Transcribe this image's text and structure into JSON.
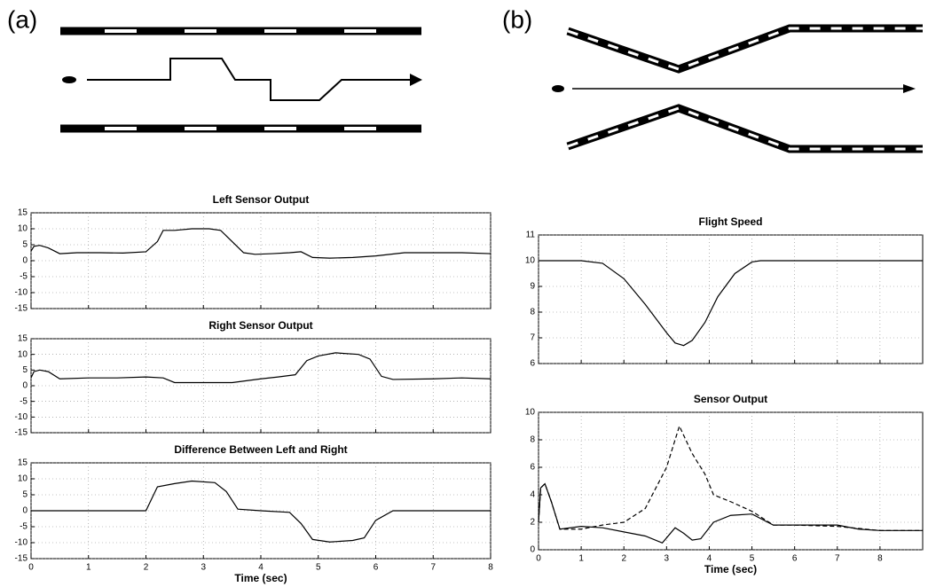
{
  "panels": [
    "(a)",
    "(b)"
  ],
  "chart_data": [
    {
      "type": "line",
      "title": "Left Sensor Output",
      "xlim": [
        0,
        8
      ],
      "ylim": [
        -15,
        15
      ],
      "xticks": [
        0,
        1,
        2,
        3,
        4,
        5,
        6,
        7,
        8
      ],
      "xtick_labels": false,
      "yticks": [
        -15,
        -10,
        -5,
        0,
        5,
        10,
        15
      ],
      "grid": true,
      "series": [
        {
          "color": "#000000",
          "dashed": false,
          "x": [
            0,
            0.05,
            0.15,
            0.3,
            0.5,
            0.8,
            1.2,
            1.6,
            2.0,
            2.2,
            2.3,
            2.5,
            2.8,
            3.1,
            3.3,
            3.5,
            3.7,
            3.9,
            4.2,
            4.5,
            4.7,
            4.9,
            5.2,
            5.6,
            6.0,
            6.5,
            7.0,
            7.5,
            8
          ],
          "values": [
            3,
            4.5,
            4.8,
            4,
            2.2,
            2.5,
            2.5,
            2.4,
            2.8,
            6,
            9.5,
            9.5,
            10,
            10,
            9.5,
            6,
            2.5,
            2,
            2.2,
            2.5,
            2.8,
            1,
            0.8,
            1,
            1.5,
            2.5,
            2.5,
            2.5,
            2.2
          ]
        }
      ]
    },
    {
      "type": "line",
      "title": "Right Sensor Output",
      "xlim": [
        0,
        8
      ],
      "ylim": [
        -15,
        15
      ],
      "xticks": [
        0,
        1,
        2,
        3,
        4,
        5,
        6,
        7,
        8
      ],
      "xtick_labels": false,
      "yticks": [
        -15,
        -10,
        -5,
        0,
        5,
        10,
        15
      ],
      "grid": true,
      "series": [
        {
          "color": "#000000",
          "dashed": false,
          "x": [
            0,
            0.05,
            0.15,
            0.3,
            0.5,
            1,
            1.5,
            2,
            2.3,
            2.5,
            3,
            3.5,
            4,
            4.3,
            4.6,
            4.8,
            5,
            5.3,
            5.7,
            5.9,
            6.1,
            6.3,
            7,
            7.5,
            8
          ],
          "values": [
            2.5,
            4.5,
            5,
            4.5,
            2.2,
            2.5,
            2.5,
            2.8,
            2.5,
            1,
            1,
            1,
            2.2,
            2.8,
            3.5,
            8,
            9.5,
            10.5,
            10,
            8.5,
            3,
            2,
            2.2,
            2.5,
            2.2
          ]
        }
      ]
    },
    {
      "type": "line",
      "title": "Difference Between Left and Right",
      "x_label": "Time (sec)",
      "xlim": [
        0,
        8
      ],
      "ylim": [
        -15,
        15
      ],
      "xticks": [
        0,
        1,
        2,
        3,
        4,
        5,
        6,
        7,
        8
      ],
      "xtick_labels": true,
      "yticks": [
        -15,
        -10,
        -5,
        0,
        5,
        10,
        15
      ],
      "grid": true,
      "series": [
        {
          "color": "#000000",
          "dashed": false,
          "x": [
            0,
            2,
            2.2,
            2.5,
            2.8,
            3.2,
            3.4,
            3.6,
            4,
            4.5,
            4.7,
            4.9,
            5.2,
            5.6,
            5.8,
            6,
            6.3,
            8
          ],
          "values": [
            0,
            0,
            7.5,
            8.5,
            9.3,
            8.8,
            6,
            0.5,
            0,
            -0.5,
            -4,
            -9,
            -9.8,
            -9.3,
            -8.5,
            -3,
            0,
            0
          ]
        }
      ]
    },
    {
      "type": "line",
      "title": "Flight Speed",
      "xlim": [
        0,
        9
      ],
      "ylim": [
        6,
        11
      ],
      "xticks": [
        0,
        1,
        2,
        3,
        4,
        5,
        6,
        7,
        8
      ],
      "xtick_labels": false,
      "yticks": [
        6,
        7,
        8,
        9,
        10,
        11
      ],
      "grid": true,
      "series": [
        {
          "color": "#000000",
          "dashed": false,
          "x": [
            0,
            1,
            1.5,
            2,
            2.5,
            3,
            3.2,
            3.4,
            3.6,
            3.9,
            4.2,
            4.6,
            5,
            5.2,
            9
          ],
          "values": [
            10,
            10,
            9.9,
            9.3,
            8.3,
            7.2,
            6.8,
            6.7,
            6.9,
            7.6,
            8.6,
            9.5,
            9.95,
            10,
            10
          ]
        }
      ]
    },
    {
      "type": "line",
      "title": "Sensor Output",
      "x_label": "Time (sec)",
      "xlim": [
        0,
        9
      ],
      "ylim": [
        0,
        10
      ],
      "xticks": [
        0,
        1,
        2,
        3,
        4,
        5,
        6,
        7,
        8
      ],
      "xtick_labels": true,
      "yticks": [
        0,
        2,
        4,
        6,
        8,
        10
      ],
      "grid": true,
      "series": [
        {
          "color": "#000000",
          "dashed": false,
          "x": [
            0,
            0.05,
            0.15,
            0.3,
            0.5,
            1,
            1.5,
            2,
            2.5,
            2.9,
            3.2,
            3.4,
            3.6,
            3.8,
            4.1,
            4.5,
            5,
            5.5,
            6,
            7,
            7.5,
            8,
            9
          ],
          "values": [
            2,
            4.5,
            4.8,
            3.5,
            1.5,
            1.7,
            1.6,
            1.3,
            1.0,
            0.5,
            1.6,
            1.2,
            0.7,
            0.8,
            2.0,
            2.5,
            2.6,
            1.8,
            1.8,
            1.8,
            1.5,
            1.4,
            1.4
          ]
        },
        {
          "color": "#000000",
          "dashed": true,
          "x": [
            0,
            0.05,
            0.15,
            0.3,
            0.5,
            1,
            1.5,
            2,
            2.5,
            3,
            3.3,
            3.6,
            3.9,
            4.1,
            4.5,
            5,
            5.5,
            6,
            7,
            8,
            9
          ],
          "values": [
            2,
            4.5,
            4.8,
            3.5,
            1.5,
            1.5,
            1.8,
            2,
            3,
            6,
            9,
            7,
            5.5,
            4,
            3.5,
            2.8,
            1.8,
            1.8,
            1.7,
            1.4,
            1.4
          ]
        }
      ]
    }
  ]
}
